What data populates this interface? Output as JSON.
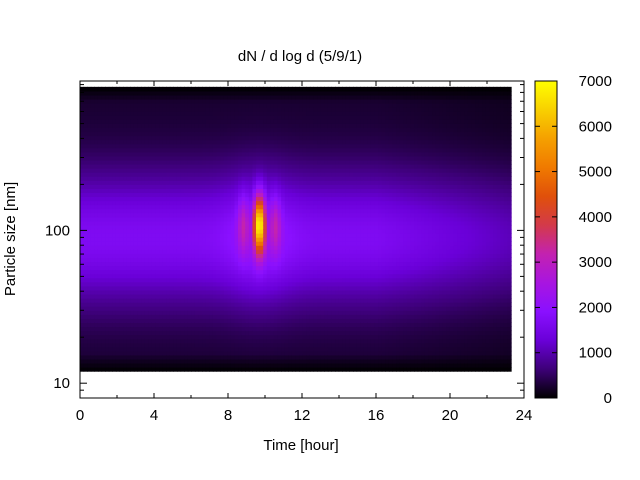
{
  "chart_data": {
    "type": "heatmap",
    "title": "dN / d log d (5/9/1)",
    "xlabel": "Time [hour]",
    "ylabel": "Particle size [nm]",
    "x_ticks": [
      0,
      4,
      8,
      12,
      16,
      20,
      24
    ],
    "x_tick_labels": [
      "0",
      "4",
      "8",
      "12",
      "16",
      "20",
      "24"
    ],
    "xlim": [
      0,
      24
    ],
    "y_scale": "log",
    "y_ticks": [
      10,
      100
    ],
    "y_tick_labels": [
      "10",
      "100"
    ],
    "ylim": [
      8,
      950
    ],
    "data_time_range": [
      0,
      23.3
    ],
    "data_size_range": [
      12,
      870
    ],
    "colorbar": {
      "range": [
        0,
        7000
      ],
      "ticks": [
        0,
        1000,
        2000,
        3000,
        4000,
        5000,
        6000,
        7000
      ],
      "tick_labels": [
        "0",
        "1000",
        "2000",
        "3000",
        "4000",
        "5000",
        "6000",
        "7000"
      ],
      "palette": [
        "#000000",
        "#3d0078",
        "#6a00d8",
        "#8a10ff",
        "#a815e0",
        "#c322b0",
        "#d33a4a",
        "#e0500a",
        "#f07a00",
        "#f5a000",
        "#f8d000",
        "#ffff00"
      ]
    },
    "features": [
      {
        "type": "peak",
        "time_hour": 9.7,
        "size_nm": 110,
        "value": 6200
      },
      {
        "type": "background_band",
        "size_range_nm": [
          20,
          400
        ],
        "value_approx": 1200
      }
    ]
  }
}
